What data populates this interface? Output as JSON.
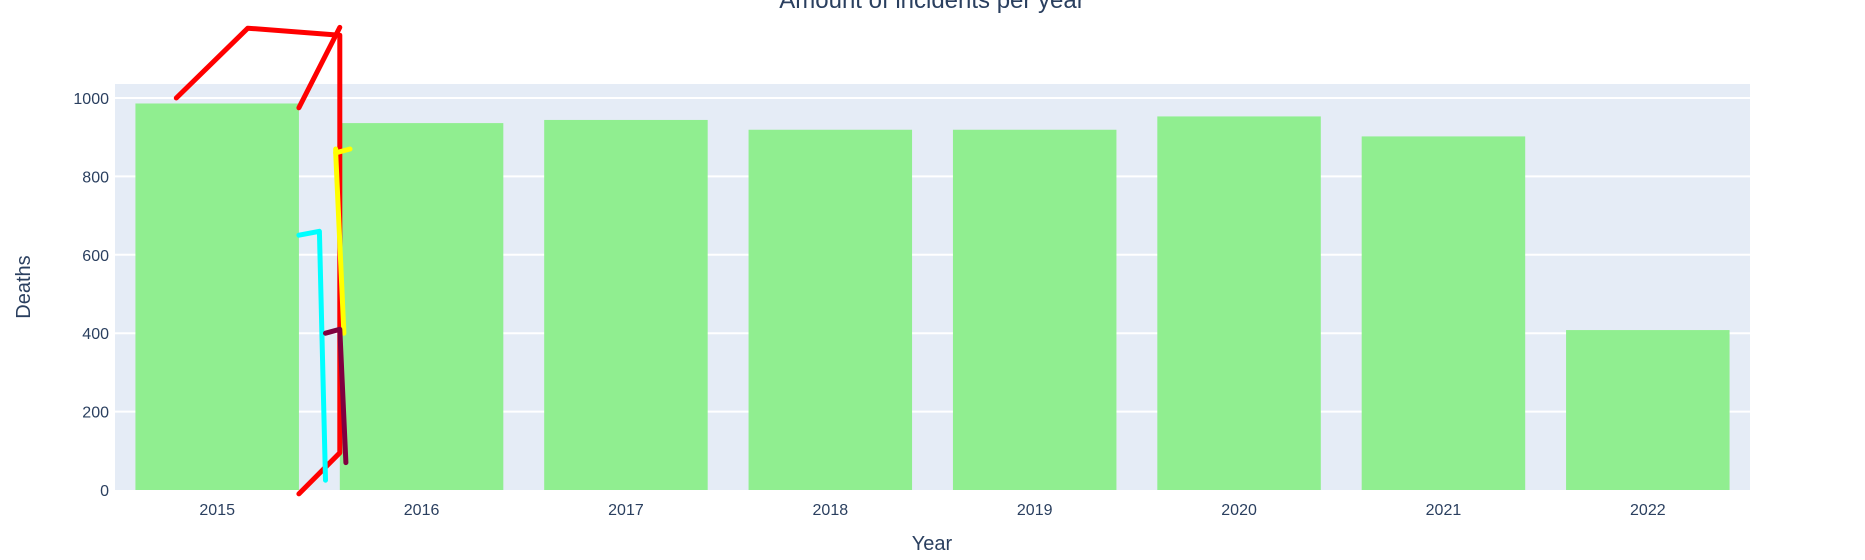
{
  "chart_data": {
    "type": "bar",
    "title": "Amount of incidents per year",
    "xlabel": "Year",
    "ylabel": "Deaths",
    "categories": [
      "2015",
      "2016",
      "2017",
      "2018",
      "2019",
      "2020",
      "2021",
      "2022"
    ],
    "values": [
      986,
      936,
      944,
      919,
      919,
      953,
      902,
      408
    ],
    "ylim": [
      0,
      1000
    ],
    "yticks": [
      0,
      200,
      400,
      600,
      800,
      1000
    ],
    "grid": true,
    "legend": "none",
    "bar_color": "#90ee90",
    "plot_background": "#e5ecf6",
    "overlay_strokes": [
      {
        "color": "#ff0000",
        "points": [
          [
            2014.8,
            1000
          ],
          [
            2015.15,
            1178
          ],
          [
            2015.6,
            1160
          ],
          [
            2015.6,
            95
          ],
          [
            2015.4,
            -10
          ]
        ]
      },
      {
        "color": "#ff0000",
        "points": [
          [
            2015.4,
            975
          ],
          [
            2015.6,
            1180
          ]
        ]
      },
      {
        "color": "#00ffff",
        "points": [
          [
            2015.4,
            650
          ],
          [
            2015.5,
            660
          ],
          [
            2015.53,
            25
          ]
        ]
      },
      {
        "color": "#ffff00",
        "points": [
          [
            2015.58,
            870
          ],
          [
            2015.58,
            860
          ],
          [
            2015.65,
            870
          ]
        ]
      },
      {
        "color": "#ffff00",
        "points": [
          [
            2015.58,
            860
          ],
          [
            2015.62,
            400
          ]
        ]
      },
      {
        "color": "#800040",
        "points": [
          [
            2015.53,
            400
          ],
          [
            2015.6,
            410
          ],
          [
            2015.63,
            70
          ]
        ]
      }
    ]
  }
}
